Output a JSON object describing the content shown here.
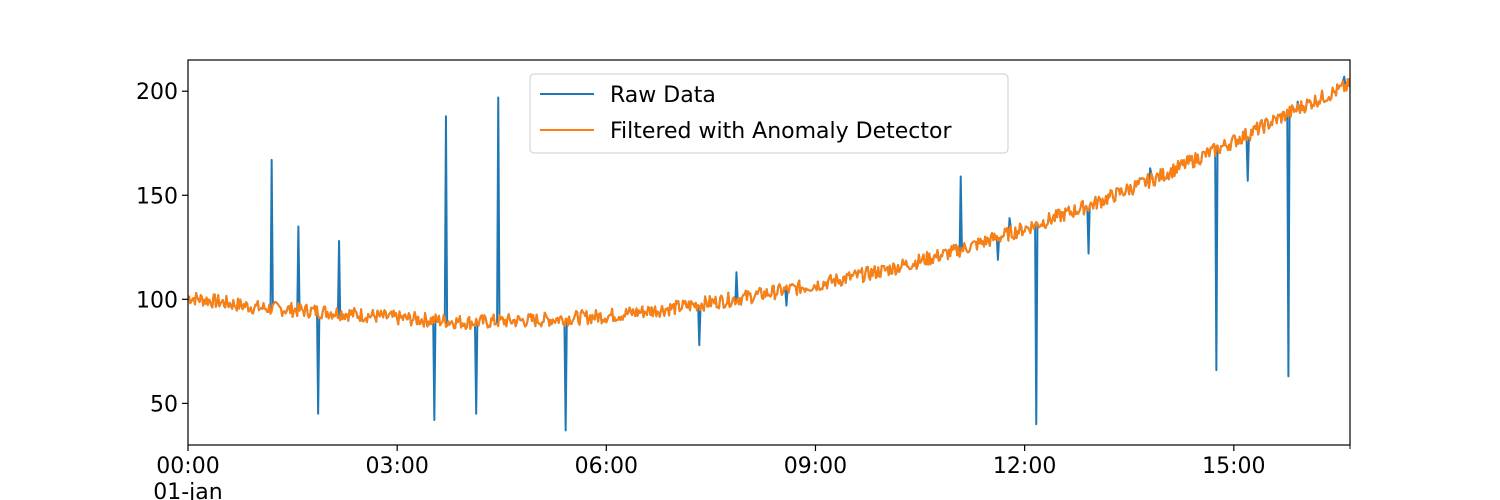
{
  "chart_data": {
    "type": "line",
    "title": "",
    "xlabel": "",
    "ylabel": "",
    "x_range": [
      "00:00",
      "16:40"
    ],
    "ylim": [
      30,
      215
    ],
    "x_ticks": [
      {
        "at": "00:00",
        "label": "00:00",
        "sublabel": "01-jan"
      },
      {
        "at": "03:00",
        "label": "03:00"
      },
      {
        "at": "06:00",
        "label": "06:00"
      },
      {
        "at": "09:00",
        "label": "09:00"
      },
      {
        "at": "12:00",
        "label": "12:00"
      },
      {
        "at": "15:00",
        "label": "15:00"
      }
    ],
    "y_ticks": [
      50,
      100,
      150,
      200
    ],
    "legend": {
      "position": "upper center"
    },
    "series": [
      {
        "name": "Raw Data",
        "color": "#1f77b4",
        "baseline": [
          [
            "00:00",
            101
          ],
          [
            "01:00",
            96
          ],
          [
            "02:00",
            94
          ],
          [
            "03:00",
            91
          ],
          [
            "04:00",
            89
          ],
          [
            "05:00",
            90
          ],
          [
            "06:00",
            92
          ],
          [
            "07:00",
            96
          ],
          [
            "08:00",
            101
          ],
          [
            "09:00",
            107
          ],
          [
            "10:00",
            114
          ],
          [
            "11:00",
            123
          ],
          [
            "12:00",
            134
          ],
          [
            "13:00",
            146
          ],
          [
            "14:00",
            160
          ],
          [
            "15:00",
            176
          ],
          [
            "16:00",
            193
          ],
          [
            "16:40",
            203
          ]
        ],
        "anomalies": [
          [
            "01:12",
            167
          ],
          [
            "01:35",
            135
          ],
          [
            "01:52",
            45
          ],
          [
            "02:10",
            128
          ],
          [
            "03:32",
            42
          ],
          [
            "03:42",
            188
          ],
          [
            "04:08",
            45
          ],
          [
            "04:27",
            197
          ],
          [
            "05:25",
            37
          ],
          [
            "07:20",
            78
          ],
          [
            "07:52",
            113
          ],
          [
            "08:35",
            97
          ],
          [
            "11:05",
            159
          ],
          [
            "11:37",
            119
          ],
          [
            "11:47",
            139
          ],
          [
            "12:10",
            40
          ],
          [
            "12:55",
            122
          ],
          [
            "13:48",
            163
          ],
          [
            "14:45",
            66
          ],
          [
            "15:12",
            157
          ],
          [
            "15:47",
            63
          ],
          [
            "15:55",
            195
          ],
          [
            "16:35",
            207
          ]
        ]
      },
      {
        "name": "Filtered with Anomaly Detector",
        "color": "#ff7f0e",
        "baseline": [
          [
            "00:00",
            101
          ],
          [
            "01:00",
            96
          ],
          [
            "02:00",
            94
          ],
          [
            "03:00",
            91
          ],
          [
            "04:00",
            89
          ],
          [
            "05:00",
            90
          ],
          [
            "06:00",
            92
          ],
          [
            "07:00",
            96
          ],
          [
            "08:00",
            101
          ],
          [
            "09:00",
            107
          ],
          [
            "10:00",
            114
          ],
          [
            "11:00",
            123
          ],
          [
            "12:00",
            134
          ],
          [
            "13:00",
            146
          ],
          [
            "14:00",
            160
          ],
          [
            "15:00",
            176
          ],
          [
            "16:00",
            193
          ],
          [
            "16:40",
            203
          ]
        ]
      }
    ]
  }
}
